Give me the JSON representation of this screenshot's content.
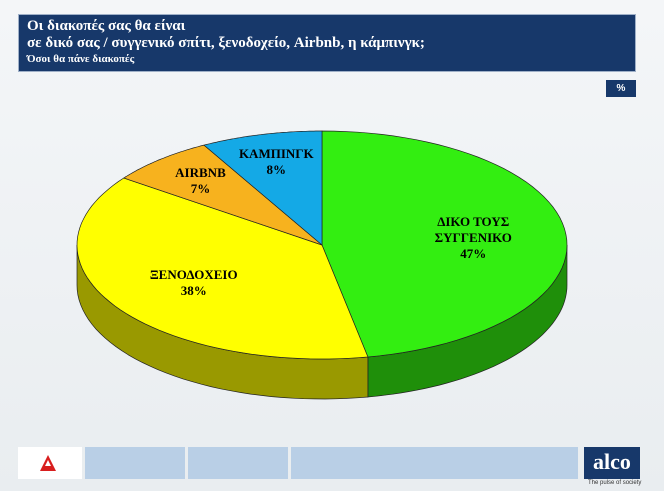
{
  "header": {
    "title_lines": [
      "Οι διακοπές σας θα είναι",
      "σε δικό σας / συγγενικό σπίτι, ξενοδοχείο, Airbnb, η κάμπινγκ;"
    ],
    "subtitle": "Όσοι θα πάνε διακοπές",
    "unit": "%"
  },
  "chart_data": {
    "type": "pie",
    "categories": [
      "ΔΙΚΟ ΤΟΥΣ ΣΥΓΓΕΝΙΚΟ",
      "ΞΕΝΟΔΟΧΕΙΟ",
      "AIRBNB",
      "ΚΑΜΠΙΝΓΚ"
    ],
    "values": [
      47,
      38,
      7,
      8
    ],
    "value_labels": [
      "47%",
      "38%",
      "7%",
      "8%"
    ],
    "colors": [
      "#33ee11",
      "#ffff00",
      "#f7b21e",
      "#14a9e6"
    ]
  },
  "footer": {
    "brand": "alco",
    "tagline": "The pulse of society"
  }
}
